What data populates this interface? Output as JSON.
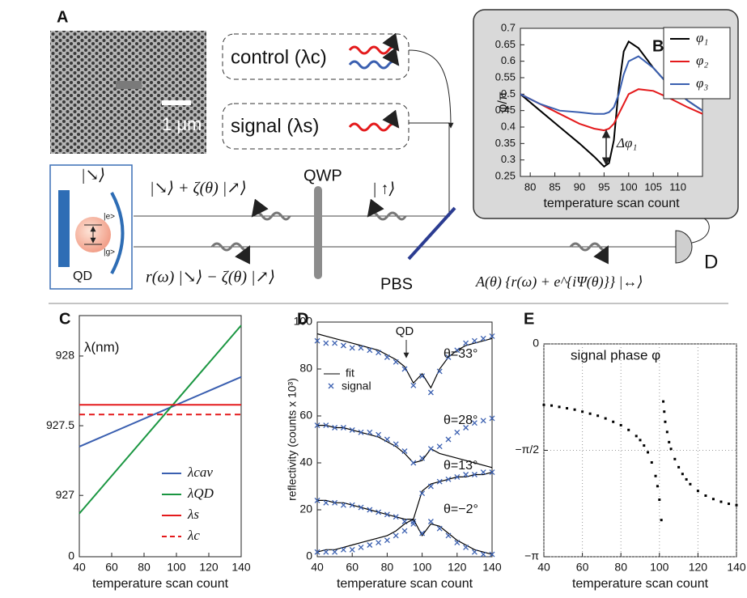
{
  "diagram": {
    "panel": "A",
    "scale_bar": "1 μm",
    "control": "control (λc)",
    "signal": "signal (λs)",
    "state_cavity": "|↘⟩",
    "state_reflected": "|↘⟩ + ζ(θ) |↗⟩",
    "qwp": "QWP",
    "state_input": "| ↑⟩",
    "excited": "|e>",
    "ground": "|g>",
    "qd": "QD",
    "state_return": "r(ω) |↘⟩ − ζ(θ) |↗⟩",
    "pbs": "PBS",
    "state_out": "A(θ) {r(ω) + e^{iΨ(θ)}} |↔⟩",
    "detector": "D"
  },
  "chart_data": [
    {
      "type": "line",
      "panel": "B",
      "xlabel": "temperature scan count",
      "ylabel": "φ/π",
      "x": [
        78,
        82,
        86,
        90,
        93,
        95,
        96,
        97,
        98,
        99,
        100,
        102,
        105,
        108,
        112,
        115
      ],
      "series": [
        {
          "name": "φ₁",
          "color": "#000000",
          "values": [
            0.5,
            0.45,
            0.4,
            0.35,
            0.31,
            0.28,
            0.29,
            0.36,
            0.52,
            0.63,
            0.66,
            0.64,
            0.58,
            0.53,
            0.48,
            0.45
          ]
        },
        {
          "name": "φ₂",
          "color": "#e41a1c",
          "values": [
            0.5,
            0.47,
            0.44,
            0.41,
            0.395,
            0.39,
            0.395,
            0.41,
            0.44,
            0.47,
            0.5,
            0.515,
            0.51,
            0.49,
            0.46,
            0.44
          ]
        },
        {
          "name": "φ₃",
          "color": "#3a5fb0",
          "values": [
            0.5,
            0.47,
            0.45,
            0.445,
            0.44,
            0.44,
            0.445,
            0.46,
            0.5,
            0.56,
            0.6,
            0.615,
            0.58,
            0.53,
            0.48,
            0.45
          ]
        }
      ],
      "annotation": "Δφ₁",
      "xlim": [
        78,
        115
      ],
      "ylim": [
        0.25,
        0.7
      ],
      "xticks": [
        80,
        85,
        90,
        95,
        100,
        105,
        110
      ],
      "yticks": [
        0.25,
        0.3,
        0.35,
        0.4,
        0.45,
        0.5,
        0.55,
        0.6,
        0.65,
        0.7
      ],
      "legend": "upper right"
    },
    {
      "type": "line",
      "panel": "C",
      "xlabel": "temperature scan count",
      "ylabel": "λ(nm)",
      "x": [
        40,
        140
      ],
      "series": [
        {
          "name": "λcav",
          "color": "#3a5fb0",
          "values": [
            927.35,
            927.85
          ]
        },
        {
          "name": "λQD",
          "color": "#1a9641",
          "values": [
            926.87,
            928.22
          ]
        },
        {
          "name": "λs",
          "color": "#e41a1c",
          "values": [
            927.65,
            927.65
          ]
        },
        {
          "name": "λc",
          "color": "#e41a1c",
          "values": [
            927.58,
            927.58
          ],
          "linestyle": "dashed"
        }
      ],
      "axis_break_label": "0",
      "xlim": [
        40,
        140
      ],
      "ylim": [
        926.56,
        928.29
      ],
      "xticks": [
        40,
        60,
        80,
        100,
        120,
        140
      ],
      "yticks": [
        927,
        927.5,
        928
      ],
      "legend": "lower right"
    },
    {
      "type": "fit-scatter",
      "panel": "D",
      "xlabel": "temperature scan count",
      "ylabel": "reflectivity (counts x 10³)",
      "annotation": "QD",
      "legend": [
        "fit",
        "signal"
      ],
      "fit_color": "#000000",
      "signal_color": "#3a5fb0",
      "x": [
        40,
        45,
        50,
        55,
        60,
        65,
        70,
        75,
        80,
        85,
        90,
        95,
        100,
        105,
        110,
        115,
        120,
        125,
        130,
        135,
        140
      ],
      "series": [
        {
          "name": "θ=33°",
          "fit": [
            95,
            94,
            93,
            92,
            91,
            90,
            89,
            88,
            86,
            84,
            81,
            74,
            78,
            72,
            80,
            85,
            88,
            90,
            91,
            92,
            93
          ],
          "signal": [
            92,
            91,
            91,
            90,
            89,
            89,
            88,
            87,
            85,
            83,
            80,
            73,
            77,
            70,
            79,
            85,
            88,
            91,
            92,
            93,
            94
          ]
        },
        {
          "name": "θ=28°",
          "fit": [
            56,
            56,
            55,
            55,
            54,
            53,
            52,
            51,
            49,
            47,
            44,
            40,
            41,
            46,
            44,
            43,
            42,
            41,
            40,
            39,
            38
          ],
          "signal": [
            56,
            56,
            55,
            55,
            54,
            53,
            53,
            52,
            50,
            48,
            45,
            40,
            42,
            46,
            47,
            50,
            53,
            55,
            57,
            58,
            59
          ]
        },
        {
          "name": "θ=13°",
          "fit": [
            24,
            24,
            23,
            23,
            22,
            21,
            20,
            19,
            18,
            17,
            16,
            16,
            28,
            31,
            32,
            33,
            34,
            34,
            35,
            35,
            36
          ],
          "signal": [
            24,
            23,
            23,
            22,
            22,
            21,
            20,
            19,
            18,
            17,
            15,
            15,
            27,
            30,
            32,
            33,
            34,
            35,
            35,
            36,
            36
          ]
        },
        {
          "name": "θ=−2°",
          "fit": [
            2,
            3,
            3,
            4,
            5,
            6,
            7,
            8,
            9,
            11,
            14,
            16,
            9,
            14,
            13,
            10,
            7,
            5,
            3,
            2,
            1
          ],
          "signal": [
            2,
            2,
            2,
            3,
            3,
            4,
            5,
            6,
            7,
            9,
            11,
            14,
            10,
            15,
            12,
            9,
            6,
            4,
            2,
            1,
            1
          ]
        }
      ],
      "xlim": [
        40,
        140
      ],
      "ylim": [
        0,
        100
      ],
      "xticks": [
        40,
        60,
        80,
        100,
        120,
        140
      ],
      "yticks": [
        0,
        20,
        40,
        60,
        80,
        100
      ]
    },
    {
      "type": "scatter",
      "panel": "E",
      "xlabel": "temperature scan count",
      "annotation": "signal phase φ",
      "color": "#000000",
      "grid": true,
      "x": [
        40,
        44,
        48,
        52,
        56,
        60,
        64,
        68,
        72,
        76,
        80,
        84,
        88,
        90,
        92,
        94,
        96,
        98,
        99,
        100,
        101,
        102,
        102.5,
        103,
        104,
        105,
        106,
        108,
        110,
        112,
        114,
        116,
        120,
        124,
        128,
        132,
        136,
        140
      ],
      "values": [
        -0.9,
        -0.91,
        -0.93,
        -0.95,
        -0.97,
        -1.0,
        -1.03,
        -1.06,
        -1.1,
        -1.15,
        -1.2,
        -1.27,
        -1.36,
        -1.42,
        -1.5,
        -1.6,
        -1.75,
        -1.95,
        -2.1,
        -2.3,
        -2.6,
        -0.85,
        -1.0,
        -1.15,
        -1.3,
        -1.45,
        -1.55,
        -1.7,
        -1.82,
        -1.92,
        -2.0,
        -2.07,
        -2.17,
        -2.24,
        -2.29,
        -2.33,
        -2.36,
        -2.38
      ],
      "xlim": [
        40,
        140
      ],
      "ylim": [
        -3.1416,
        0
      ],
      "xticks": [
        40,
        60,
        80,
        100,
        120,
        140
      ],
      "yticks": [
        0,
        {
          "value": -1.5708,
          "label": "−π/2"
        },
        {
          "value": -3.1416,
          "label": "−π"
        }
      ]
    }
  ]
}
